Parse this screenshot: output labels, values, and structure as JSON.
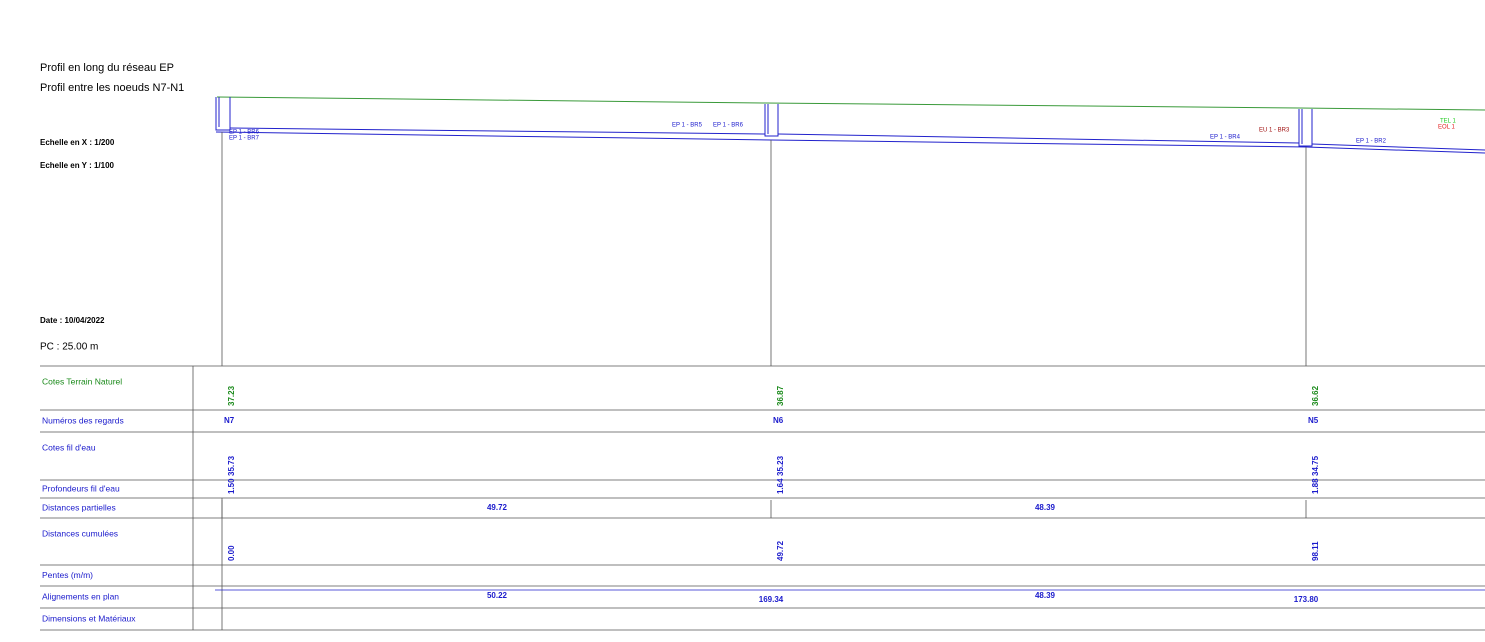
{
  "header": {
    "title": "Profil en long du réseau EP",
    "subtitle": "Profil entre les noeuds  N7-N1"
  },
  "info": {
    "scale_x": "Echelle en X : 1/200",
    "scale_y": "Echelle en Y : 1/100",
    "date": "Date : 10/04/2022",
    "pc": "PC : 25.00 m"
  },
  "labels": [
    "EP 1 - BR6",
    "EP 1 - BR7",
    "EP 1 - BR5",
    "EP 1 - BR6",
    "EP 1 - BR4",
    "EU 1 - BR3",
    "EP 1 - BR2",
    "TEL 1",
    "EOL 1"
  ],
  "table": {
    "rows": [
      {
        "label": "Cotes Terrain Naturel",
        "cells": [
          "37.23",
          "36.87",
          "36.62"
        ]
      },
      {
        "label": "Numéros des regards",
        "cells": [
          "N7",
          "N6",
          "N5"
        ]
      },
      {
        "label": "Cotes fil d'eau",
        "cells": [
          "35.73",
          "35.23",
          "34.75"
        ]
      },
      {
        "label": "Profondeurs fil d'eau",
        "cells": [
          "1.50",
          "1.64",
          "1.88"
        ]
      },
      {
        "label": "Distances partielles",
        "cells": [
          "49.72",
          "48.39"
        ]
      },
      {
        "label": "Distances cumulées",
        "cells": [
          "0.00",
          "49.72",
          "98.11"
        ]
      },
      {
        "label": "Pentes (m/m)",
        "cells": []
      },
      {
        "label": "Alignements en plan",
        "cells": [
          "50.22",
          "169.34",
          "48.39",
          "173.80"
        ]
      },
      {
        "label": "Dimensions et Matériaux",
        "cells": []
      }
    ]
  }
}
